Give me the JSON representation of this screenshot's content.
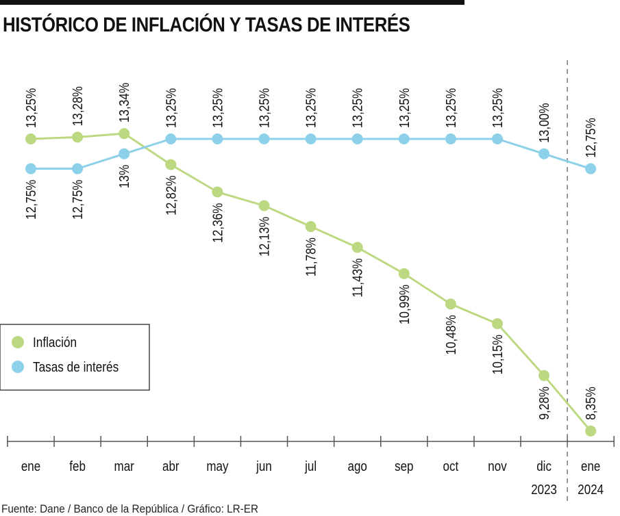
{
  "title": "HISTÓRICO DE INFLACIÓN Y TASAS DE INTERÉS",
  "source": "Fuente: Dane / Banco de la República / Gráfico: LR-ER",
  "colors": {
    "inflacion": "#bcd982",
    "tasas": "#8dd0ea",
    "axis": "#555555",
    "divider": "#777777"
  },
  "chart_data": {
    "type": "line",
    "categories": [
      "ene",
      "feb",
      "mar",
      "abr",
      "may",
      "jun",
      "jul",
      "ago",
      "sep",
      "oct",
      "nov",
      "dic",
      "ene"
    ],
    "year_labels": [
      {
        "index": 11,
        "text": "2023"
      },
      {
        "index": 12,
        "text": "2024"
      }
    ],
    "divider_after_index": 11,
    "ylim": [
      8.0,
      13.6
    ],
    "grid": false,
    "legend_position": "middle-left",
    "series": [
      {
        "key": "inflacion",
        "name": "Inflación",
        "values": [
          13.25,
          13.28,
          13.34,
          12.82,
          12.36,
          12.13,
          11.78,
          11.43,
          10.99,
          10.48,
          10.15,
          9.28,
          8.35
        ],
        "labels": [
          "13,25%",
          "13,28%",
          "13,34%",
          "12,82%",
          "12,36%",
          "12,13%",
          "11,78%",
          "11,43%",
          "10,99%",
          "10,48%",
          "10,15%",
          "9,28%",
          "8,35%"
        ]
      },
      {
        "key": "tasas",
        "name": "Tasas de interés",
        "values": [
          12.75,
          12.75,
          13.0,
          13.25,
          13.25,
          13.25,
          13.25,
          13.25,
          13.25,
          13.25,
          13.25,
          13.0,
          12.75
        ],
        "labels": [
          "12,75%",
          "12,75%",
          "13%",
          "13,25%",
          "13,25%",
          "13,25%",
          "13,25%",
          "13,25%",
          "13,25%",
          "13,25%",
          "13,25%",
          "13,00%",
          "12,75%"
        ]
      }
    ]
  }
}
